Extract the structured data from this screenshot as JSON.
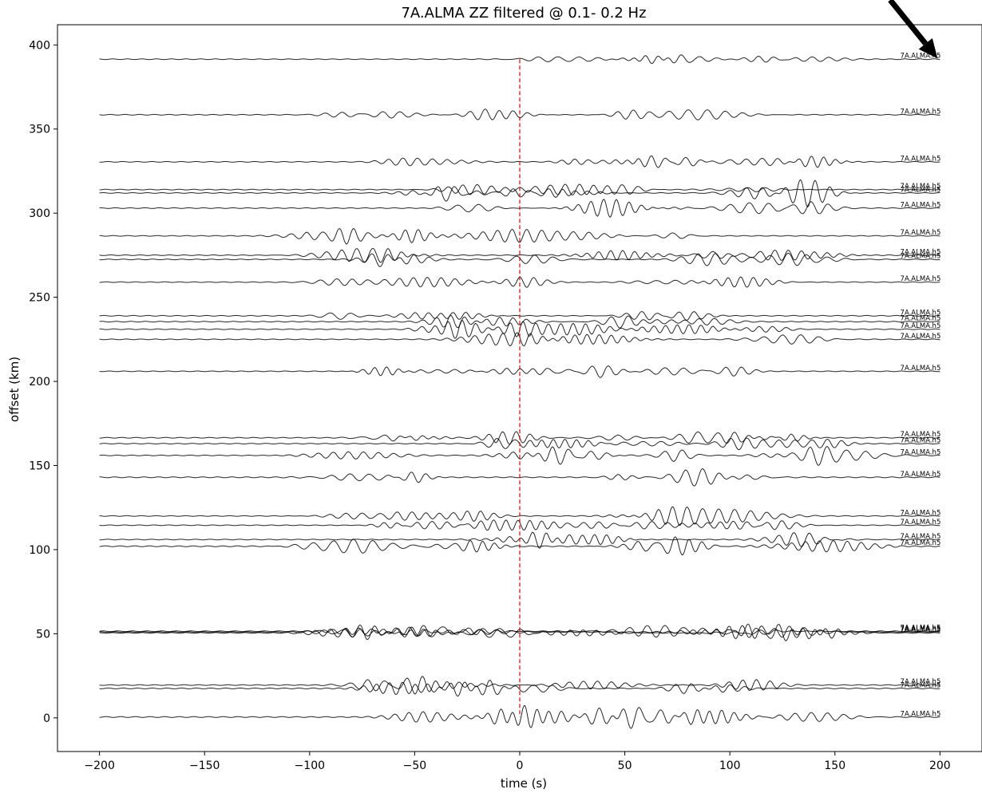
{
  "chart_data": {
    "type": "line",
    "title": "7A.ALMA ZZ filtered @ 0.1- 0.2 Hz",
    "xlabel": "time (s)",
    "ylabel": "offset (km)",
    "xlim": [
      -220,
      220
    ],
    "ylim": [
      -20,
      412
    ],
    "x_ticks": [
      -200,
      -150,
      -100,
      -50,
      0,
      50,
      100,
      150,
      200
    ],
    "y_ticks": [
      0,
      50,
      100,
      150,
      200,
      250,
      300,
      350,
      400
    ],
    "x_tick_labels": [
      "−200",
      "−150",
      "−100",
      "−50",
      "0",
      "50",
      "100",
      "150",
      "200"
    ],
    "y_tick_labels": [
      "0",
      "50",
      "100",
      "150",
      "200",
      "250",
      "300",
      "350",
      "400"
    ],
    "trace_time_range": [
      -200,
      200
    ],
    "vertical_marker": {
      "x": 0,
      "color": "#e00000",
      "style": "dashed"
    },
    "arrow": {
      "from": [
        220,
        412
      ],
      "to": [
        200,
        390
      ],
      "color": "#000000"
    },
    "series": [
      {
        "label": "7A.ALMA.h5",
        "offset": 391.5,
        "amplitude": 1.2
      },
      {
        "label": "7A.ALMA.h5",
        "offset": 358.5,
        "amplitude": 1.2
      },
      {
        "label": "7A.ALMA.h5",
        "offset": 330.5,
        "amplitude": 1.2
      },
      {
        "label": "7A.ALMA.h5",
        "offset": 314.0,
        "amplitude": 1.2
      },
      {
        "label": "7A.ALMA.h5",
        "offset": 312.0,
        "amplitude": 1.2
      },
      {
        "label": "7A.ALMA.h5",
        "offset": 303.0,
        "amplitude": 1.2
      },
      {
        "label": "7A.ALMA.h5",
        "offset": 286.5,
        "amplitude": 1.2
      },
      {
        "label": "7A.ALMA.h5",
        "offset": 275.0,
        "amplitude": 1.2
      },
      {
        "label": "7A.ALMA.h5",
        "offset": 272.5,
        "amplitude": 1.2
      },
      {
        "label": "7A.ALMA.h5",
        "offset": 259.0,
        "amplitude": 1.2
      },
      {
        "label": "7A.ALMA.h5",
        "offset": 239.0,
        "amplitude": 1.2
      },
      {
        "label": "7A.ALMA.h5",
        "offset": 235.5,
        "amplitude": 1.2
      },
      {
        "label": "7A.ALMA.h5",
        "offset": 231.0,
        "amplitude": 1.2
      },
      {
        "label": "7A.ALMA.h5",
        "offset": 225.0,
        "amplitude": 1.2
      },
      {
        "label": "7A.ALMA.h5",
        "offset": 206.0,
        "amplitude": 1.2
      },
      {
        "label": "7A.ALMA.h5",
        "offset": 166.5,
        "amplitude": 1.2
      },
      {
        "label": "7A.ALMA.h5",
        "offset": 163.0,
        "amplitude": 1.2
      },
      {
        "label": "7A.ALMA.h5",
        "offset": 156.0,
        "amplitude": 1.2
      },
      {
        "label": "7A.ALMA.h5",
        "offset": 143.0,
        "amplitude": 1.5
      },
      {
        "label": "7A.ALMA.h5",
        "offset": 120.0,
        "amplitude": 1.2
      },
      {
        "label": "7A.ALMA.h5",
        "offset": 114.5,
        "amplitude": 1.2
      },
      {
        "label": "7A.ALMA.h5",
        "offset": 106.0,
        "amplitude": 1.2
      },
      {
        "label": "7A.ALMA.h5",
        "offset": 102.0,
        "amplitude": 1.5
      },
      {
        "label": "7A.ALMA.h5",
        "offset": 51.5,
        "amplitude": 1.2
      },
      {
        "label": "7A.ALMA.h5",
        "offset": 51.0,
        "amplitude": 1.2
      },
      {
        "label": "7A.ALMA.h5",
        "offset": 50.5,
        "amplitude": 1.2
      },
      {
        "label": "7A.ALMA.h5",
        "offset": 19.5,
        "amplitude": 1.2
      },
      {
        "label": "7A.ALMA.h5",
        "offset": 17.5,
        "amplitude": 1.5
      },
      {
        "label": "7A.ALMA.h5",
        "offset": 0.5,
        "amplitude": 1.5
      }
    ]
  }
}
